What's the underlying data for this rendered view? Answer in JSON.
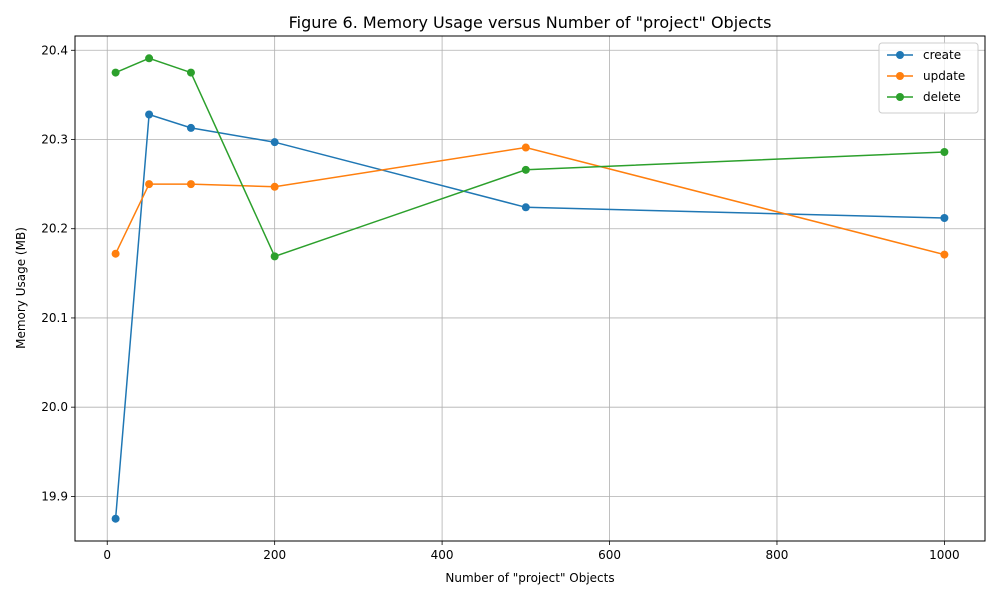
{
  "chart_data": {
    "type": "line",
    "title": "Figure 6. Memory Usage versus Number of \"project\" Objects",
    "xlabel": "Number of \"project\" Objects",
    "ylabel": "Memory Usage (MB)",
    "x": [
      10,
      50,
      100,
      200,
      500,
      1000
    ],
    "xlim": [
      -38.5,
      1048.5
    ],
    "ylim": [
      19.85,
      20.416
    ],
    "xticks": [
      0,
      200,
      400,
      600,
      800,
      1000
    ],
    "xtick_labels": [
      "0",
      "200",
      "400",
      "600",
      "800",
      "1000"
    ],
    "yticks": [
      19.9,
      20.0,
      20.1,
      20.2,
      20.3,
      20.4
    ],
    "ytick_labels": [
      "19.9",
      "20.0",
      "20.1",
      "20.2",
      "20.3",
      "20.4"
    ],
    "grid": true,
    "legend_position": "top-right",
    "series": [
      {
        "name": "create",
        "color": "#1f77b4",
        "values": [
          19.875,
          20.328,
          20.313,
          20.297,
          20.224,
          20.212
        ]
      },
      {
        "name": "update",
        "color": "#ff7f0e",
        "values": [
          20.172,
          20.25,
          20.25,
          20.247,
          20.291,
          20.171
        ]
      },
      {
        "name": "delete",
        "color": "#2ca02c",
        "values": [
          20.375,
          20.391,
          20.375,
          20.169,
          20.266,
          20.286
        ]
      }
    ]
  }
}
